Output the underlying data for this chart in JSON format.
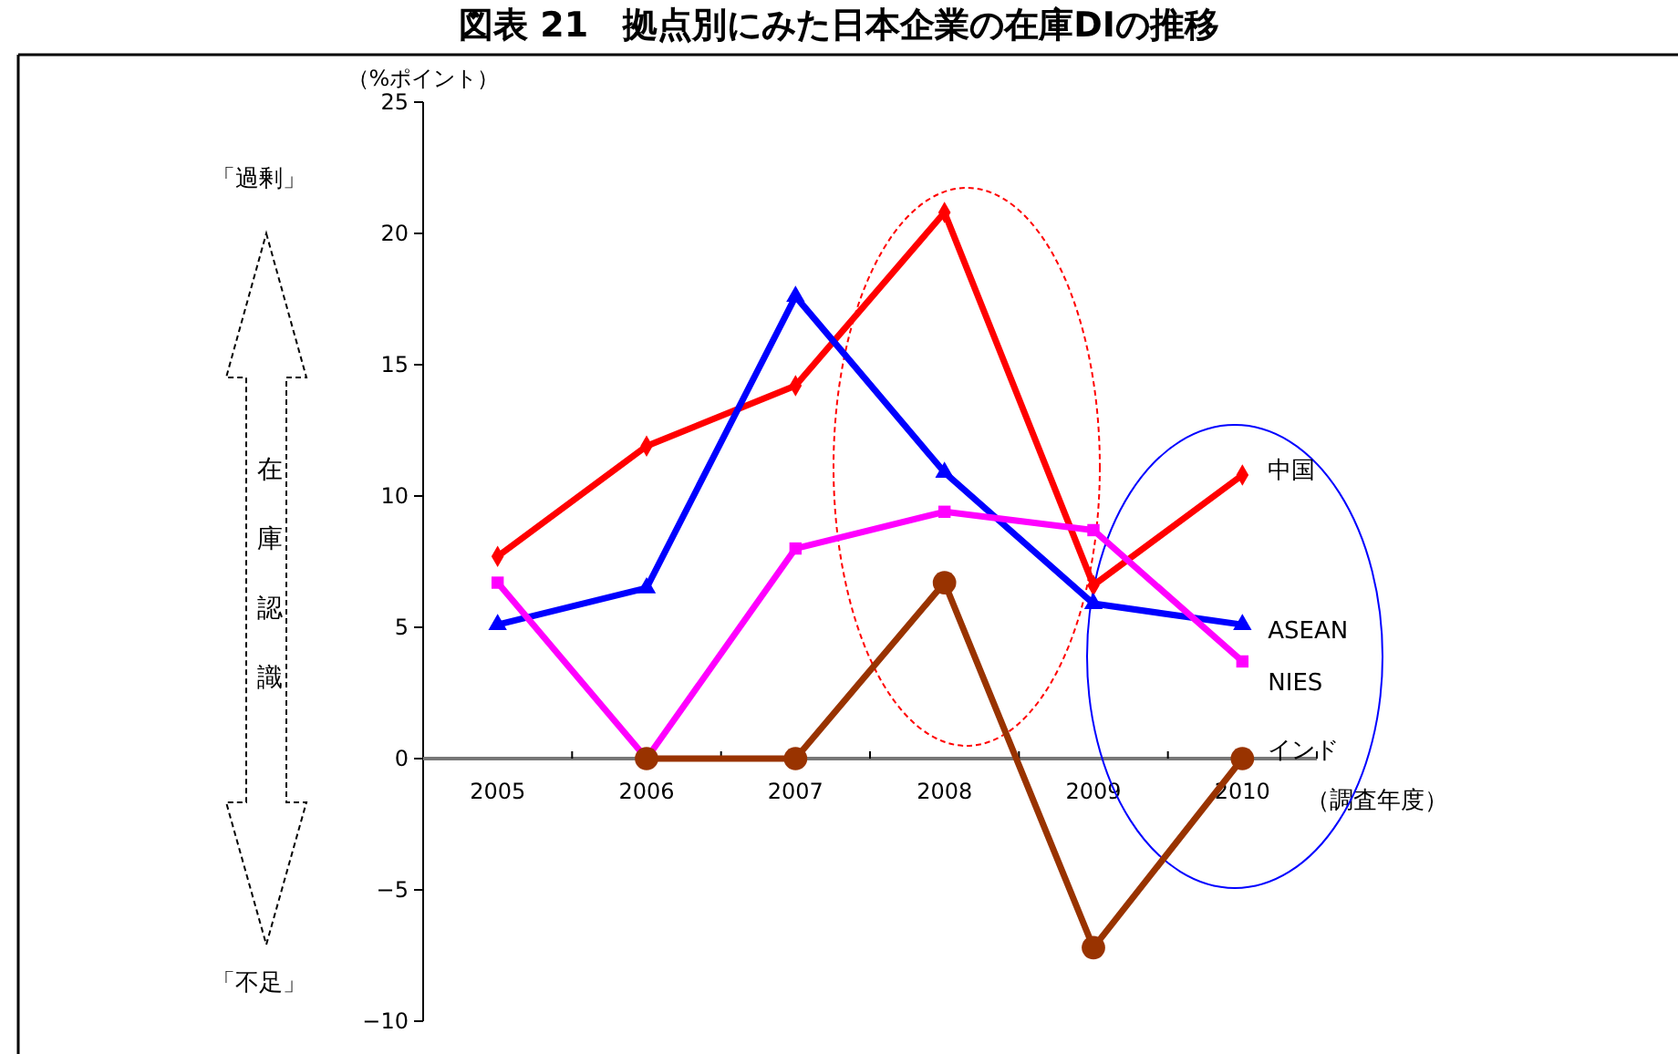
{
  "chart_data": {
    "type": "line",
    "title": "図表 21　拠点別にみた日本企業の在庫DIの推移",
    "ylabel": "（%ポイント）",
    "xlabel": "（調査年度）",
    "categories": [
      "2005",
      "2006",
      "2007",
      "2008",
      "2009",
      "2010"
    ],
    "ylim": [
      -10,
      25
    ],
    "yticks": [
      {
        "value": -10,
        "label": "−10"
      },
      {
        "value": -5,
        "label": "−5"
      },
      0,
      5,
      10,
      15,
      20,
      25
    ],
    "series": [
      {
        "name": "中国",
        "color": "#ff0000",
        "marker": "diamond",
        "values": [
          7.7,
          11.9,
          14.2,
          20.8,
          6.6,
          10.8
        ]
      },
      {
        "name": "ASEAN",
        "color": "#0000ff",
        "marker": "triangle",
        "values": [
          5.1,
          6.5,
          17.6,
          10.9,
          5.9,
          5.1
        ]
      },
      {
        "name": "NIES",
        "color": "#ff00ff",
        "marker": "square",
        "values": [
          6.7,
          0,
          8.0,
          9.4,
          8.7,
          3.7
        ]
      },
      {
        "name": "インド",
        "color": "#993300",
        "marker": "circle",
        "values": [
          null,
          0,
          0,
          6.7,
          -7.2,
          0
        ]
      }
    ],
    "annotations": [
      "「過剰」",
      "在庫認識",
      "「不足」"
    ],
    "grid": false,
    "legend": false,
    "line_style": "solid"
  }
}
